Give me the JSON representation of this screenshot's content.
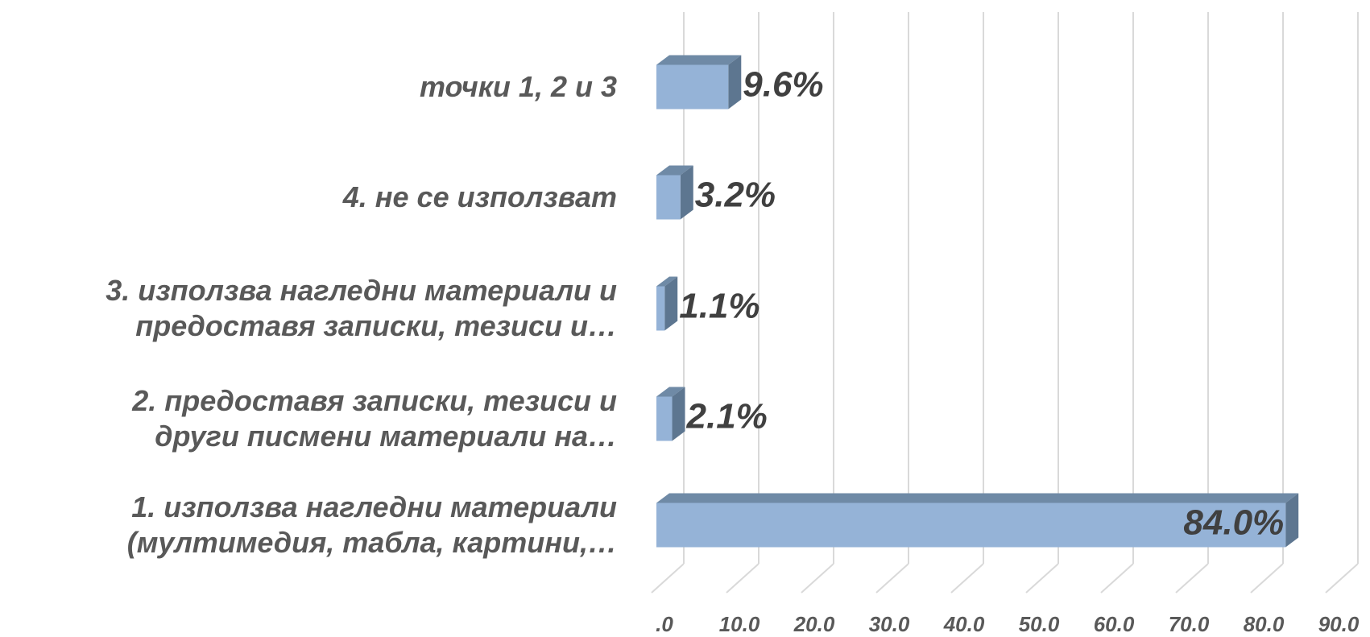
{
  "chart_data": {
    "type": "bar3d_horizontal",
    "categories": [
      "точки 1, 2 и 3",
      "4. не се използват",
      "3. използва нагледни материали и\nпредоставя записки, тезиси и…",
      "2. предоставя записки, тезиси и\nдруги писмени материали на…",
      "1. използва нагледни материали\n(мултимедия, табла, картини,…"
    ],
    "values": [
      9.6,
      3.2,
      1.1,
      2.1,
      84.0
    ],
    "value_labels": [
      "9.6%",
      "3.2%",
      "1.1%",
      "2.1%",
      "84.0%"
    ],
    "color": "#95b3d7",
    "xlim": [
      0,
      90
    ],
    "xticks": [
      {
        "value": 0,
        "label": ".0"
      },
      {
        "value": 10,
        "label": "10.0"
      },
      {
        "value": 20,
        "label": "20.0"
      },
      {
        "value": 30,
        "label": "30.0"
      },
      {
        "value": 40,
        "label": "40.0"
      },
      {
        "value": 50,
        "label": "50.0"
      },
      {
        "value": 60,
        "label": "60.0"
      },
      {
        "value": 70,
        "label": "70.0"
      },
      {
        "value": 80,
        "label": "80.0"
      },
      {
        "value": 90,
        "label": "90.0"
      }
    ],
    "grid": true
  }
}
